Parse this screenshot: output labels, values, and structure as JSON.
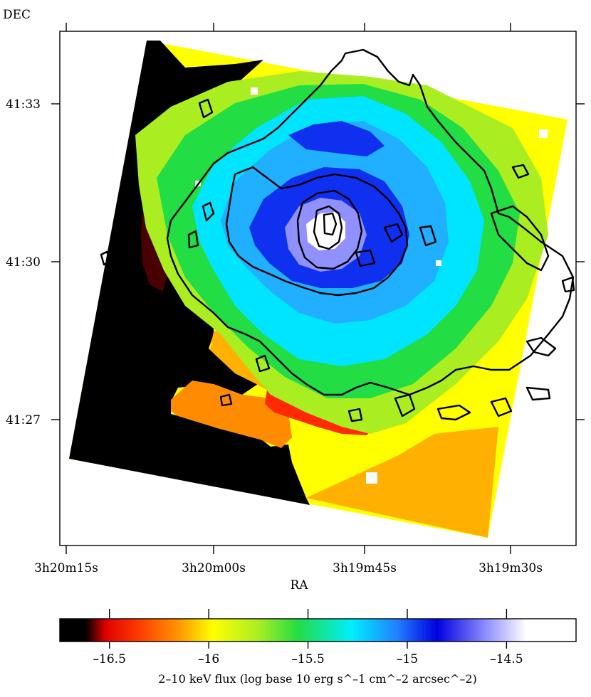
{
  "chart_data": {
    "type": "heatmap",
    "title": "",
    "xlabel": "RA",
    "ylabel": "DEC",
    "x_ticks": [
      "3h20m15s",
      "3h20m00s",
      "3h19m45s",
      "3h19m30s"
    ],
    "y_ticks": [
      "41:33",
      "41:30",
      "41:27"
    ],
    "colorbar": {
      "label": "2–10 keV flux (log base 10 erg s^–1 cm^–2 arcsec^–2)",
      "ticks": [
        "–16.5",
        "–16",
        "–15.5",
        "–15",
        "–14.5"
      ],
      "tick_values": [
        -16.5,
        -16,
        -15.5,
        -15,
        -14.5
      ],
      "range": [
        -16.75,
        -14.15
      ],
      "colormap": [
        {
          "v": -16.75,
          "c": "#000000"
        },
        {
          "v": -16.62,
          "c": "#000000"
        },
        {
          "v": -16.52,
          "c": "#e00000"
        },
        {
          "v": -16.35,
          "c": "#ff3c00"
        },
        {
          "v": -16.15,
          "c": "#ff9600"
        },
        {
          "v": -15.98,
          "c": "#ffff00"
        },
        {
          "v": -15.75,
          "c": "#aaee22"
        },
        {
          "v": -15.55,
          "c": "#22dd44"
        },
        {
          "v": -15.28,
          "c": "#00eeff"
        },
        {
          "v": -15.05,
          "c": "#2080ff"
        },
        {
          "v": -14.85,
          "c": "#0000e0"
        },
        {
          "v": -14.6,
          "c": "#9090ff"
        },
        {
          "v": -14.4,
          "c": "#ffffff"
        },
        {
          "v": -14.15,
          "c": "#ffffff"
        }
      ]
    },
    "map_levels": [
      {
        "region": "outer-edge",
        "value": -16.0,
        "color": "#ffff00"
      },
      {
        "region": "south-plateau",
        "value": -16.2,
        "color": "#ffb000"
      },
      {
        "region": "red-arc",
        "value": -16.45,
        "color": "#ff2a00"
      },
      {
        "region": "orange-lobe",
        "value": -16.3,
        "color": "#ff8c00"
      },
      {
        "region": "ring-yellowgreen",
        "value": -15.8,
        "color": "#aaee22"
      },
      {
        "region": "ring-green",
        "value": -15.55,
        "color": "#22dd44"
      },
      {
        "region": "ring-cyan",
        "value": -15.3,
        "color": "#00e5ff"
      },
      {
        "region": "ring-azure",
        "value": -15.1,
        "color": "#20b0ff"
      },
      {
        "region": "ring-blue",
        "value": -14.9,
        "color": "#1030f0"
      },
      {
        "region": "core-lavender",
        "value": -14.6,
        "color": "#9090ff"
      },
      {
        "region": "core-white",
        "value": -14.35,
        "color": "#ffffff"
      },
      {
        "region": "no-data",
        "value": -16.75,
        "color": "#000000"
      }
    ],
    "contours": "black radio contours overlaid"
  }
}
